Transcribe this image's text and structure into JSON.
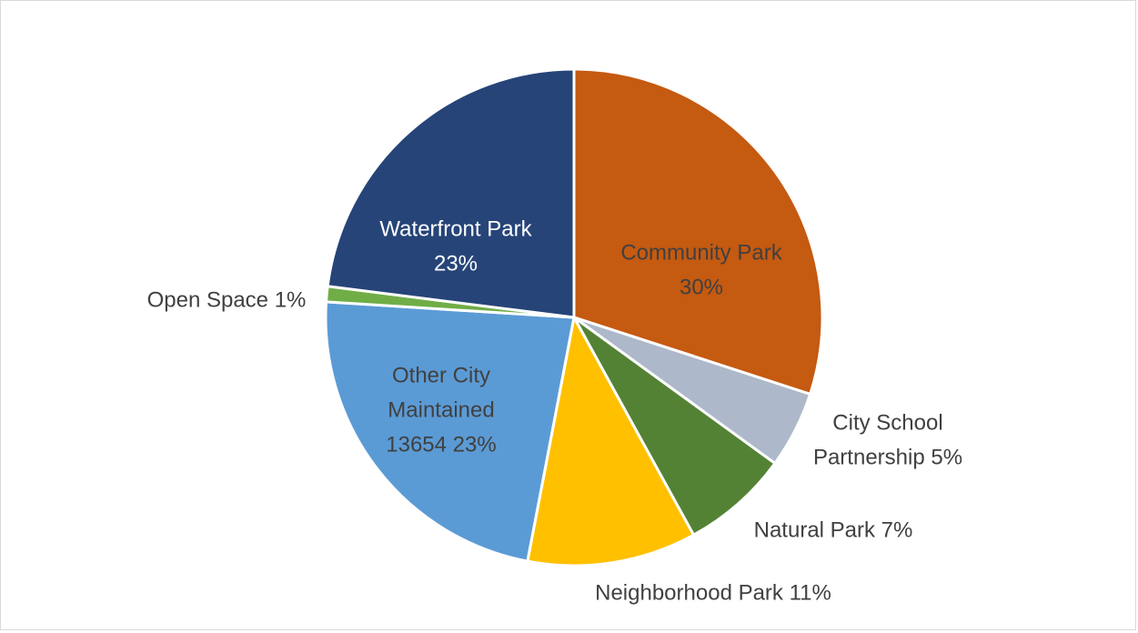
{
  "chart_data": {
    "type": "pie",
    "title": "",
    "slices": [
      {
        "name": "Community Park",
        "percent": 30,
        "label_lines": [
          "Community Park",
          "30%"
        ],
        "color": "#C55A11",
        "label_color": "#404040",
        "label_inside": true
      },
      {
        "name": "City School Partnership",
        "percent": 5,
        "label_lines": [
          "City School",
          "Partnership 5%"
        ],
        "color": "#ADB9CA",
        "label_color": "#404040",
        "label_inside": false
      },
      {
        "name": "Natural Park",
        "percent": 7,
        "label_lines": [
          "Natural Park 7%"
        ],
        "color": "#548235",
        "label_color": "#404040",
        "label_inside": false
      },
      {
        "name": "Neighborhood Park",
        "percent": 11,
        "label_lines": [
          "Neighborhood Park 11%"
        ],
        "color": "#FFC000",
        "label_color": "#404040",
        "label_inside": false
      },
      {
        "name": "Other City Maintained",
        "value": 13654,
        "percent": 23,
        "label_lines": [
          "Other City",
          "Maintained",
          "13654 23%"
        ],
        "color": "#5B9BD5",
        "label_color": "#404040",
        "label_inside": true
      },
      {
        "name": "Open Space",
        "percent": 1,
        "label_lines": [
          "Open Space 1%"
        ],
        "color": "#70AD47",
        "label_color": "#404040",
        "label_inside": false
      },
      {
        "name": "Waterfront Park",
        "percent": 23,
        "label_lines": [
          "Waterfront Park",
          "23%"
        ],
        "color": "#264478",
        "label_color": "#FFFFFF",
        "label_inside": true
      }
    ]
  }
}
